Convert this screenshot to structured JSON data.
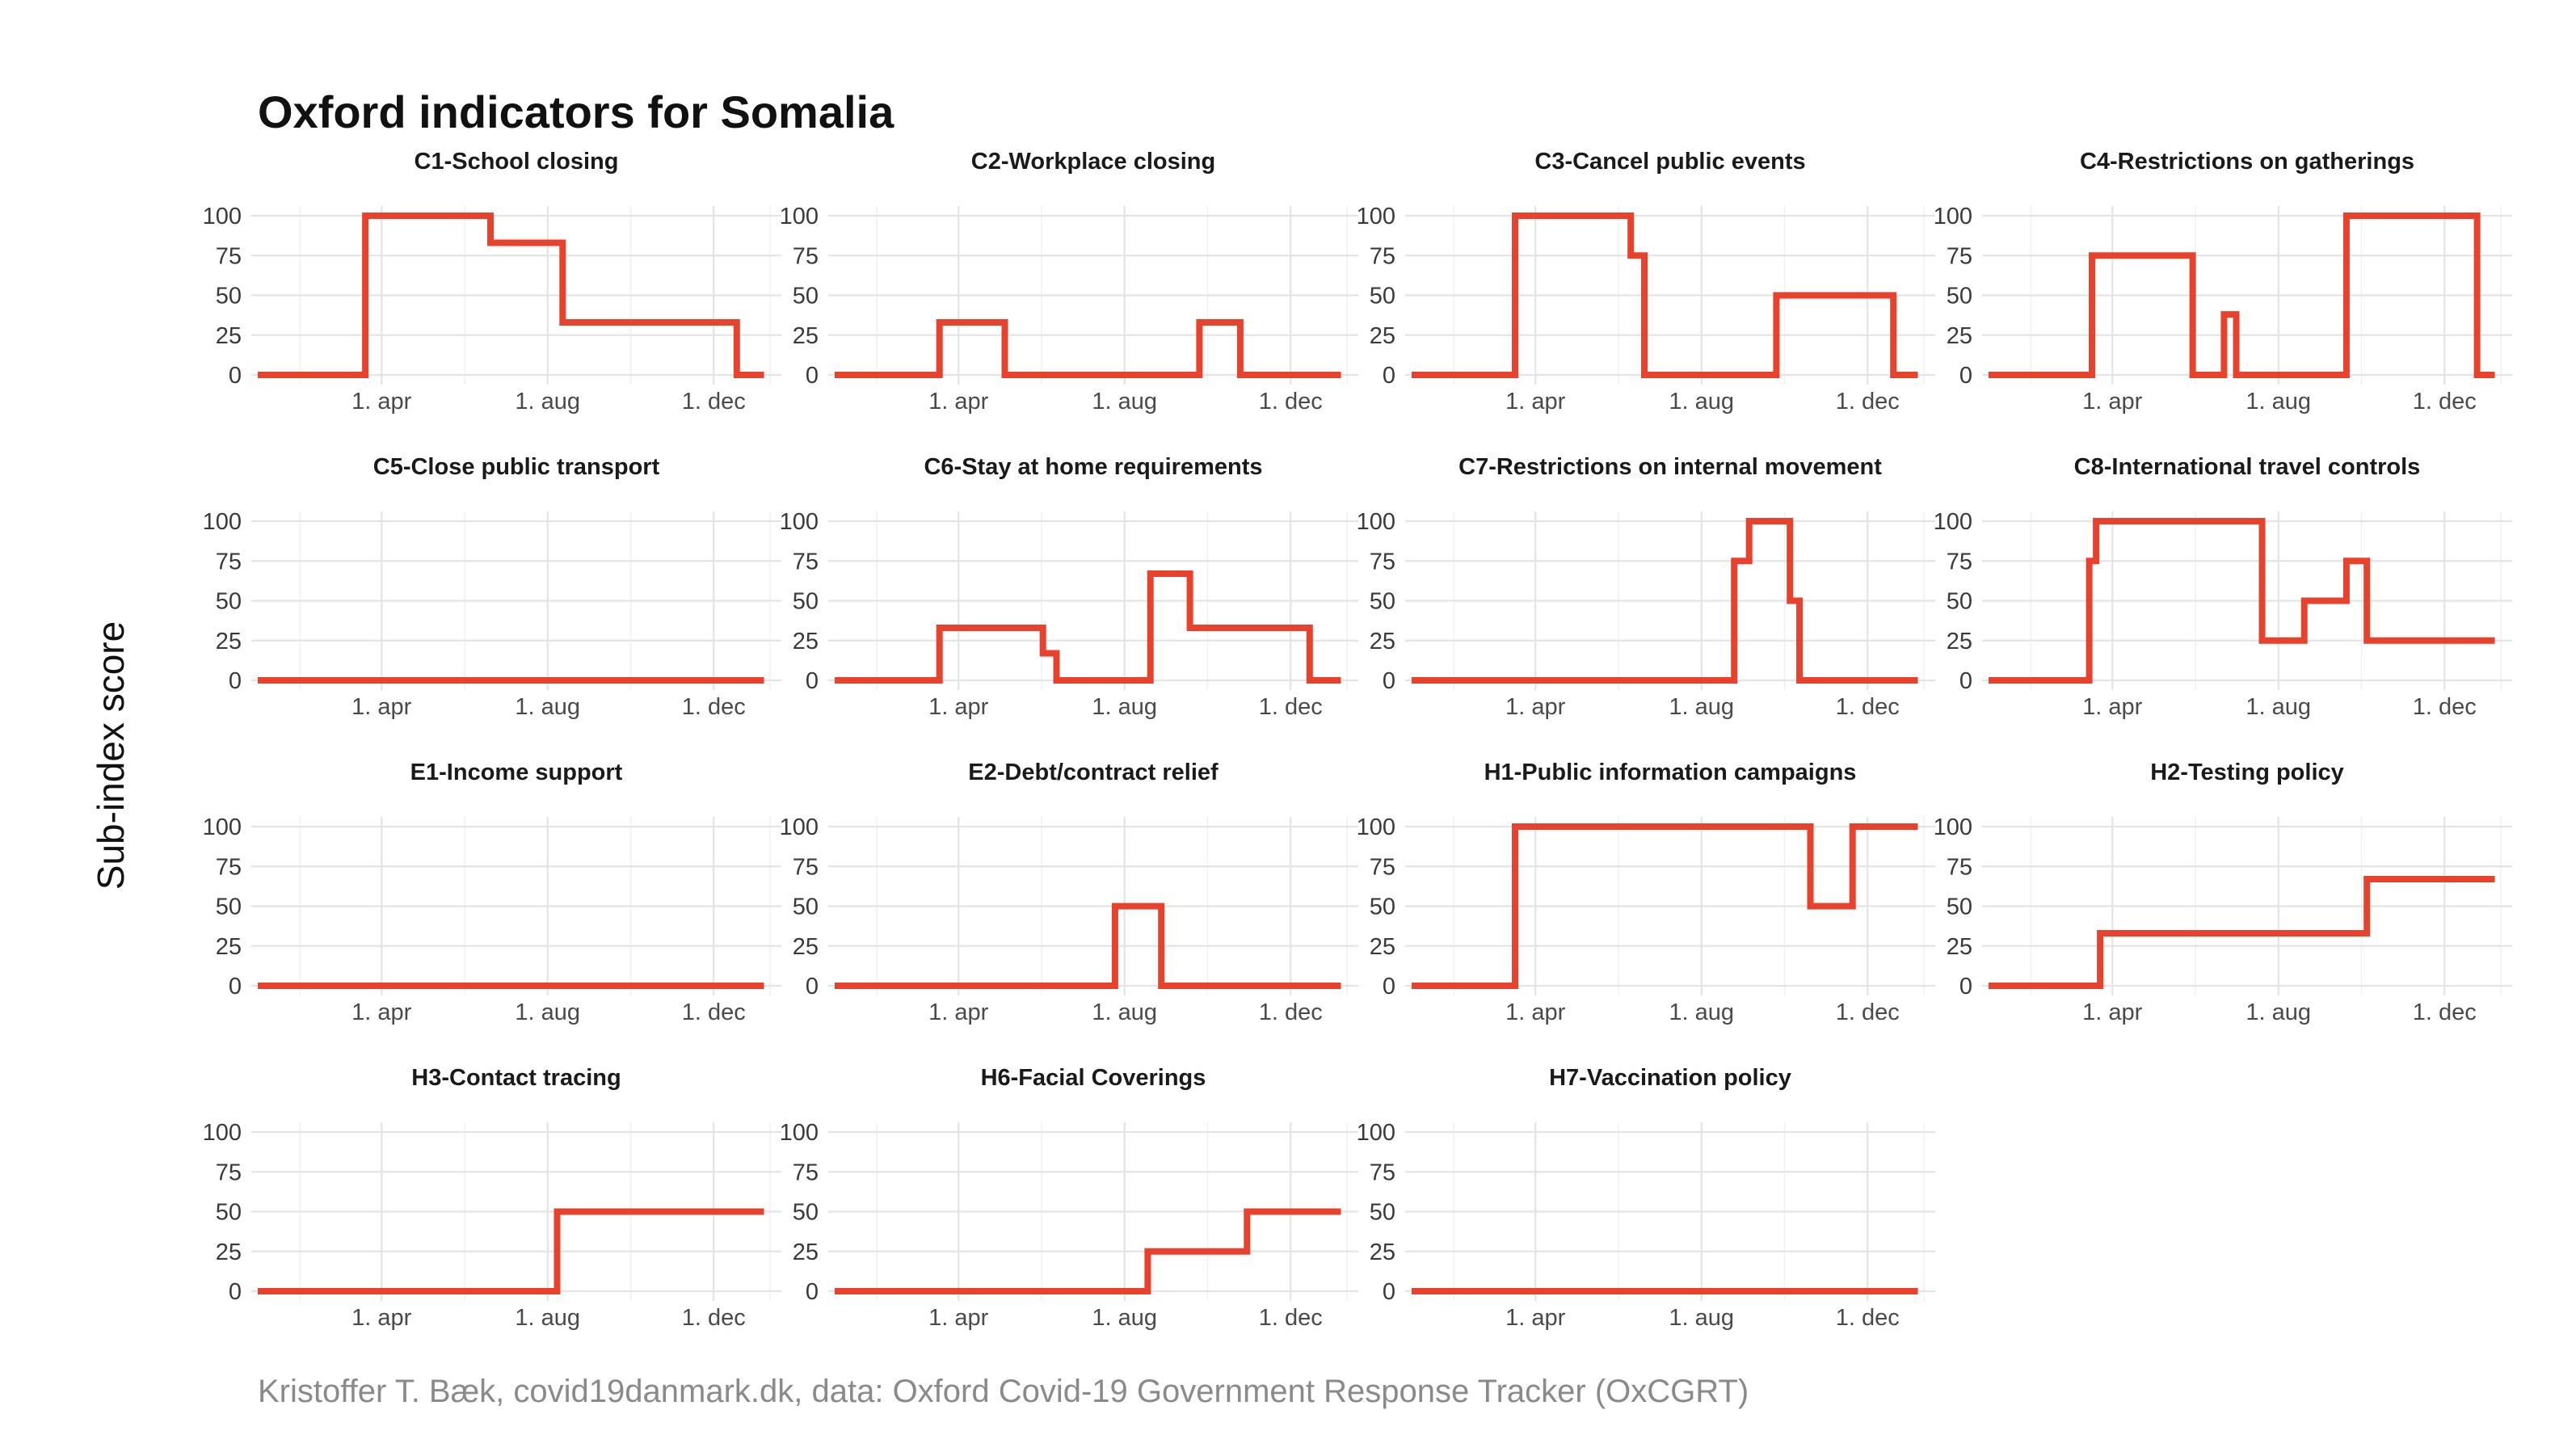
{
  "title": "Oxford indicators for Somalia",
  "ylabel": "Sub-index score",
  "caption": "Kristoffer T. Bæk, covid19danmark.dk, data: Oxford Covid-19 Government Response Tracker (OxCGRT)",
  "line_color": "#e8412c",
  "chart_data": {
    "type": "line",
    "x_unit": "date",
    "xlim": [
      "2020-01-01",
      "2021-01-15"
    ],
    "ylim": [
      0,
      100
    ],
    "y_ticks": [
      0,
      25,
      50,
      75,
      100
    ],
    "x_ticks": [
      {
        "date": "2020-04-01",
        "label": "1. apr"
      },
      {
        "date": "2020-08-01",
        "label": "1. aug"
      },
      {
        "date": "2020-12-01",
        "label": "1. dec"
      }
    ],
    "grid": true,
    "panels": [
      {
        "name": "C1-School closing",
        "points": [
          [
            "2020-01-01",
            0
          ],
          [
            "2020-03-20",
            0
          ],
          [
            "2020-03-20",
            100
          ],
          [
            "2020-06-20",
            100
          ],
          [
            "2020-06-20",
            83
          ],
          [
            "2020-08-12",
            83
          ],
          [
            "2020-08-12",
            33
          ],
          [
            "2020-12-18",
            33
          ],
          [
            "2020-12-18",
            0
          ],
          [
            "2021-01-07",
            0
          ]
        ]
      },
      {
        "name": "C2-Workplace closing",
        "points": [
          [
            "2020-01-01",
            0
          ],
          [
            "2020-03-18",
            0
          ],
          [
            "2020-03-18",
            33
          ],
          [
            "2020-05-05",
            33
          ],
          [
            "2020-05-05",
            0
          ],
          [
            "2020-09-25",
            0
          ],
          [
            "2020-09-25",
            33
          ],
          [
            "2020-10-25",
            33
          ],
          [
            "2020-10-25",
            0
          ],
          [
            "2021-01-07",
            0
          ]
        ]
      },
      {
        "name": "C3-Cancel public events",
        "points": [
          [
            "2020-01-01",
            0
          ],
          [
            "2020-03-17",
            0
          ],
          [
            "2020-03-17",
            100
          ],
          [
            "2020-06-10",
            100
          ],
          [
            "2020-06-10",
            75
          ],
          [
            "2020-06-20",
            75
          ],
          [
            "2020-06-20",
            0
          ],
          [
            "2020-09-25",
            0
          ],
          [
            "2020-09-25",
            50
          ],
          [
            "2020-12-20",
            50
          ],
          [
            "2020-12-20",
            0
          ],
          [
            "2021-01-07",
            0
          ]
        ]
      },
      {
        "name": "C4-Restrictions on gatherings",
        "points": [
          [
            "2020-01-01",
            0
          ],
          [
            "2020-03-17",
            0
          ],
          [
            "2020-03-17",
            75
          ],
          [
            "2020-05-30",
            75
          ],
          [
            "2020-05-30",
            0
          ],
          [
            "2020-06-22",
            0
          ],
          [
            "2020-06-22",
            38
          ],
          [
            "2020-07-01",
            38
          ],
          [
            "2020-07-01",
            0
          ],
          [
            "2020-09-20",
            0
          ],
          [
            "2020-09-20",
            100
          ],
          [
            "2020-12-25",
            100
          ],
          [
            "2020-12-25",
            0
          ],
          [
            "2021-01-07",
            0
          ]
        ]
      },
      {
        "name": "C5-Close public transport",
        "points": [
          [
            "2020-01-01",
            0
          ],
          [
            "2021-01-07",
            0
          ]
        ]
      },
      {
        "name": "C6-Stay at home requirements",
        "points": [
          [
            "2020-01-01",
            0
          ],
          [
            "2020-03-18",
            0
          ],
          [
            "2020-03-18",
            33
          ],
          [
            "2020-06-02",
            33
          ],
          [
            "2020-06-02",
            17
          ],
          [
            "2020-06-12",
            17
          ],
          [
            "2020-06-12",
            0
          ],
          [
            "2020-08-20",
            0
          ],
          [
            "2020-08-20",
            67
          ],
          [
            "2020-09-18",
            67
          ],
          [
            "2020-09-18",
            33
          ],
          [
            "2020-12-15",
            33
          ],
          [
            "2020-12-15",
            0
          ],
          [
            "2021-01-07",
            0
          ]
        ]
      },
      {
        "name": "C7-Restrictions on internal movement",
        "points": [
          [
            "2020-01-01",
            0
          ],
          [
            "2020-08-25",
            0
          ],
          [
            "2020-08-25",
            75
          ],
          [
            "2020-09-05",
            75
          ],
          [
            "2020-09-05",
            100
          ],
          [
            "2020-10-05",
            100
          ],
          [
            "2020-10-05",
            50
          ],
          [
            "2020-10-12",
            50
          ],
          [
            "2020-10-12",
            0
          ],
          [
            "2021-01-07",
            0
          ]
        ]
      },
      {
        "name": "C8-International travel controls",
        "points": [
          [
            "2020-01-01",
            0
          ],
          [
            "2020-03-15",
            0
          ],
          [
            "2020-03-15",
            75
          ],
          [
            "2020-03-20",
            75
          ],
          [
            "2020-03-20",
            100
          ],
          [
            "2020-07-20",
            100
          ],
          [
            "2020-07-20",
            25
          ],
          [
            "2020-08-20",
            25
          ],
          [
            "2020-08-20",
            50
          ],
          [
            "2020-09-20",
            50
          ],
          [
            "2020-09-20",
            75
          ],
          [
            "2020-10-05",
            75
          ],
          [
            "2020-10-05",
            25
          ],
          [
            "2021-01-07",
            25
          ]
        ]
      },
      {
        "name": "E1-Income support",
        "points": [
          [
            "2020-01-01",
            0
          ],
          [
            "2021-01-07",
            0
          ]
        ]
      },
      {
        "name": "E2-Debt/contract relief",
        "points": [
          [
            "2020-01-01",
            0
          ],
          [
            "2020-07-25",
            0
          ],
          [
            "2020-07-25",
            50
          ],
          [
            "2020-08-28",
            50
          ],
          [
            "2020-08-28",
            0
          ],
          [
            "2021-01-07",
            0
          ]
        ]
      },
      {
        "name": "H1-Public information campaigns",
        "points": [
          [
            "2020-01-01",
            0
          ],
          [
            "2020-03-17",
            0
          ],
          [
            "2020-03-17",
            100
          ],
          [
            "2020-10-20",
            100
          ],
          [
            "2020-10-20",
            50
          ],
          [
            "2020-11-20",
            50
          ],
          [
            "2020-11-20",
            100
          ],
          [
            "2021-01-07",
            100
          ]
        ]
      },
      {
        "name": "H2-Testing policy",
        "points": [
          [
            "2020-01-01",
            0
          ],
          [
            "2020-03-23",
            0
          ],
          [
            "2020-03-23",
            33
          ],
          [
            "2020-10-05",
            33
          ],
          [
            "2020-10-05",
            67
          ],
          [
            "2021-01-07",
            67
          ]
        ]
      },
      {
        "name": "H3-Contact tracing",
        "points": [
          [
            "2020-01-01",
            0
          ],
          [
            "2020-08-08",
            0
          ],
          [
            "2020-08-08",
            50
          ],
          [
            "2021-01-07",
            50
          ]
        ]
      },
      {
        "name": "H6-Facial Coverings",
        "points": [
          [
            "2020-01-01",
            0
          ],
          [
            "2020-08-18",
            0
          ],
          [
            "2020-08-18",
            25
          ],
          [
            "2020-10-30",
            25
          ],
          [
            "2020-10-30",
            50
          ],
          [
            "2021-01-07",
            50
          ]
        ]
      },
      {
        "name": "H7-Vaccination policy",
        "points": [
          [
            "2020-01-01",
            0
          ],
          [
            "2021-01-07",
            0
          ]
        ]
      }
    ]
  }
}
